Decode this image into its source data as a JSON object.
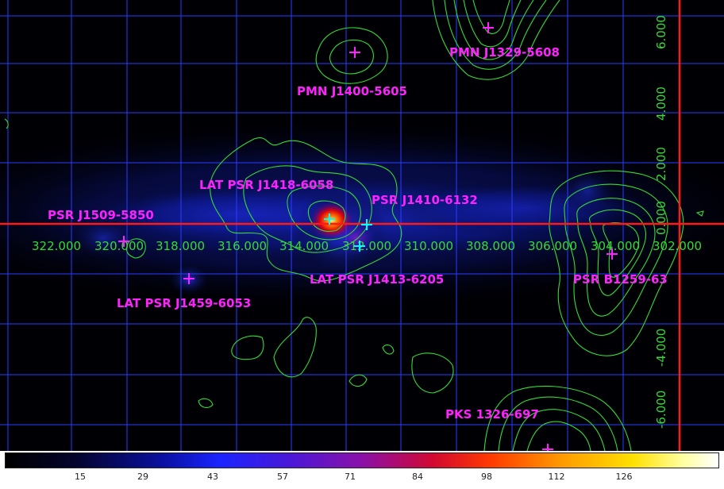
{
  "image": {
    "sources": [
      {
        "name": "PMN J1329-5608",
        "marker_color": "#ff22ff"
      },
      {
        "name": "PMN J1400-5605",
        "marker_color": "#ff22ff"
      },
      {
        "name": "LAT PSR J1418-6058",
        "marker_color": "#00ffff"
      },
      {
        "name": "PSR J1410-6132",
        "marker_color": "#00ffff"
      },
      {
        "name": "PSR J1509-5850",
        "marker_color": "#ff22ff"
      },
      {
        "name": "LAT PSR J1413-6205",
        "marker_color": "#00ffff"
      },
      {
        "name": "PSR B1259-63",
        "marker_color": "#ff22ff"
      },
      {
        "name": "LAT PSR J1459-6053",
        "marker_color": "#ff22ff"
      },
      {
        "name": "PKS 1326-697",
        "marker_color": "#ff22ff"
      }
    ],
    "longitude_ticks": [
      "322.000",
      "320.000",
      "318.000",
      "316.000",
      "314.000",
      "312.000",
      "310.000",
      "308.000",
      "306.000",
      "304.000",
      "302.000"
    ],
    "latitude_ticks": [
      "6.000",
      "4.000",
      "2.000",
      "0.000",
      "-4.000",
      "-6.000"
    ],
    "colors": {
      "grid": "#2a3cff",
      "axis_lines": "#ff1a1a",
      "contours": "#33dd33",
      "labels": "#ff22ff"
    }
  },
  "colorbar": {
    "ticks": [
      "15",
      "29",
      "43",
      "57",
      "71",
      "84",
      "98",
      "112",
      "126"
    ]
  }
}
